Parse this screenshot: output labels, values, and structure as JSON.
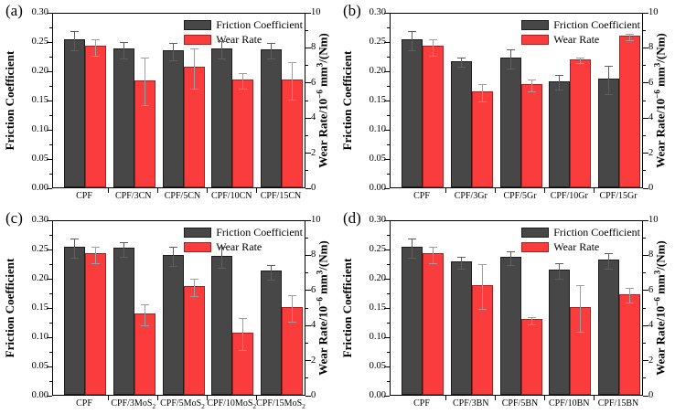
{
  "figure": {
    "background": "#ffffff",
    "colors": {
      "friction_bar": "#474747",
      "friction_edge": "#1d1d1d",
      "wear_bar": "#fb3c3c",
      "wear_edge": "#a82020",
      "friction_error": "#5e5e5e",
      "wear_error": "#9e9e9e",
      "axis": "#000000"
    },
    "legend": [
      {
        "key": "friction",
        "label": "Friction Coefficient"
      },
      {
        "key": "wear",
        "label": "Wear Rate"
      }
    ],
    "left_axis": {
      "label": "Friction Coefficient",
      "min": 0,
      "max": 0.3,
      "tick_labels": [
        "0.00",
        "0.05",
        "0.10",
        "0.15",
        "0.20",
        "0.25",
        "0.30"
      ]
    },
    "right_axis": {
      "label_parts": [
        {
          "t": "Wear Rate/10"
        },
        {
          "t": "−6",
          "sup": true
        },
        {
          "t": " mm"
        },
        {
          "t": "3",
          "sup": true
        },
        {
          "t": "/(Nm)"
        }
      ],
      "min": 0,
      "max": 10,
      "tick_labels": [
        "0",
        "2",
        "4",
        "6",
        "8",
        "10"
      ]
    }
  },
  "chart_data": [
    {
      "panel": "(a)",
      "type": "bar",
      "categories": [
        {
          "t": "CPF"
        },
        {
          "t": "CPF/3CN"
        },
        {
          "t": "CPF/5CN"
        },
        {
          "t": "CPF/10CN"
        },
        {
          "t": "CPF/15CN"
        }
      ],
      "series": [
        {
          "name": "Friction Coefficient",
          "axis": "left",
          "values": [
            0.253,
            0.237,
            0.235,
            0.238,
            0.236
          ],
          "errors": [
            0.016,
            0.014,
            0.015,
            0.015,
            0.014
          ]
        },
        {
          "name": "Wear Rate",
          "axis": "right",
          "values": [
            8.05,
            6.1,
            6.85,
            6.15,
            6.15
          ],
          "errors": [
            0.45,
            1.35,
            1.15,
            0.45,
            1.05
          ]
        }
      ]
    },
    {
      "panel": "(b)",
      "type": "bar",
      "categories": [
        {
          "t": "CPF"
        },
        {
          "t": "CPF/3Gr"
        },
        {
          "t": "CPF/5Gr"
        },
        {
          "t": "CPF/10Gr"
        },
        {
          "t": "CPF/15Gr"
        }
      ],
      "series": [
        {
          "name": "Friction Coefficient",
          "axis": "left",
          "values": [
            0.253,
            0.216,
            0.222,
            0.182,
            0.186
          ],
          "errors": [
            0.016,
            0.008,
            0.016,
            0.013,
            0.024
          ]
        },
        {
          "name": "Wear Rate",
          "axis": "right",
          "values": [
            8.05,
            5.45,
            5.9,
            7.3,
            8.65
          ],
          "errors": [
            0.45,
            0.5,
            0.35,
            0.15,
            0.2
          ]
        }
      ]
    },
    {
      "panel": "(c)",
      "type": "bar",
      "categories": [
        {
          "t": "CPF"
        },
        {
          "t": "CPF/3MoS",
          "sub": "2"
        },
        {
          "t": "CPF/5MoS",
          "sub": "2"
        },
        {
          "t": "CPF/10MoS",
          "sub": "2"
        },
        {
          "t": "CPF/15MoS",
          "sub": "2"
        }
      ],
      "series": [
        {
          "name": "Friction Coefficient",
          "axis": "left",
          "values": [
            0.253,
            0.251,
            0.239,
            0.238,
            0.212
          ],
          "errors": [
            0.016,
            0.013,
            0.016,
            0.018,
            0.012
          ]
        },
        {
          "name": "Wear Rate",
          "axis": "right",
          "values": [
            8.05,
            4.65,
            6.2,
            3.55,
            5.0
          ],
          "errors": [
            0.45,
            0.6,
            0.5,
            0.9,
            0.75
          ]
        }
      ]
    },
    {
      "panel": "(d)",
      "type": "bar",
      "categories": [
        {
          "t": "CPF"
        },
        {
          "t": "CPF/3BN"
        },
        {
          "t": "CPF/5BN"
        },
        {
          "t": "CPF/10BN"
        },
        {
          "t": "CPF/15BN"
        }
      ],
      "series": [
        {
          "name": "Friction Coefficient",
          "axis": "left",
          "values": [
            0.253,
            0.228,
            0.236,
            0.214,
            0.231
          ],
          "errors": [
            0.016,
            0.01,
            0.011,
            0.013,
            0.013
          ]
        },
        {
          "name": "Wear Rate",
          "axis": "right",
          "values": [
            8.05,
            6.25,
            4.3,
            5.0,
            5.75
          ],
          "errors": [
            0.45,
            1.3,
            0.2,
            1.35,
            0.4
          ]
        }
      ]
    }
  ]
}
